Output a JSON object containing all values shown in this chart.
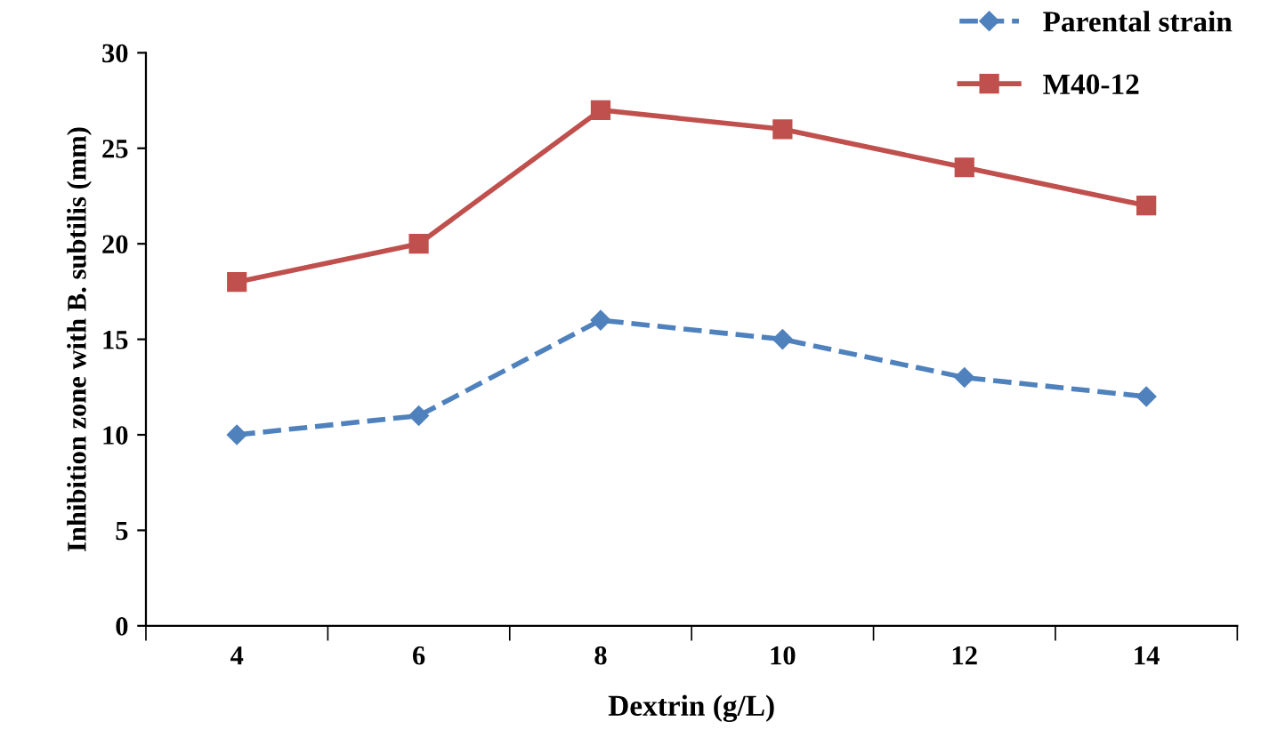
{
  "chart_data": {
    "type": "line",
    "xlabel": "Dextrin (g/L)",
    "ylabel": "Inhibition zone with B. subtilis (mm)",
    "categories": [
      "4",
      "6",
      "8",
      "10",
      "12",
      "14"
    ],
    "series": [
      {
        "name": "Parental strain",
        "color": "#4f81bd",
        "values": [
          10,
          11,
          16,
          15,
          13,
          12
        ],
        "marker": "diamond",
        "line_style": "dashed"
      },
      {
        "name": "M40-12",
        "color": "#c0504d",
        "values": [
          18,
          20,
          27,
          26,
          24,
          22
        ],
        "marker": "square",
        "line_style": "solid"
      }
    ],
    "ylim": [
      0,
      30
    ],
    "yticks": [
      0,
      5,
      10,
      15,
      20,
      25,
      30
    ],
    "grid": false,
    "legend": "top right"
  }
}
